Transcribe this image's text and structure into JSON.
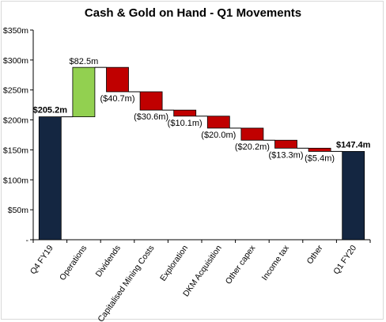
{
  "chart_data": {
    "type": "waterfall",
    "title": "Cash & Gold on Hand - Q1 Movements",
    "xlabel": "",
    "ylabel": "",
    "ylim": [
      0,
      350
    ],
    "y_ticks": [
      "-",
      "$50m",
      "$100m",
      "$150m",
      "$200m",
      "$250m",
      "$300m",
      "$350m"
    ],
    "grid": false,
    "legend": "none",
    "categories": [
      "Q4 FY19",
      "Operations",
      "Dividends",
      "Capitalised Mining Costs",
      "Exploration",
      "DKM Acquisition",
      "Other capex",
      "Income tax",
      "Other",
      "Q1 FY20"
    ],
    "values": [
      205.2,
      82.5,
      -40.7,
      -30.6,
      -10.1,
      -20.0,
      -20.2,
      -13.3,
      -5.4,
      147.4
    ],
    "kinds": [
      "total",
      "increase",
      "decrease",
      "decrease",
      "decrease",
      "decrease",
      "decrease",
      "decrease",
      "decrease",
      "total"
    ],
    "labels": [
      "$205.2m",
      "$82.5m",
      "($40.7m)",
      "($30.6m)",
      "($10.1m)",
      "($20.0m)",
      "($20.2m)",
      "($13.3m)",
      "($5.4m)",
      "$147.4m"
    ],
    "colors": {
      "total": "#142641",
      "increase": "#92d050",
      "decrease": "#c00000",
      "connector": "#000000"
    }
  }
}
